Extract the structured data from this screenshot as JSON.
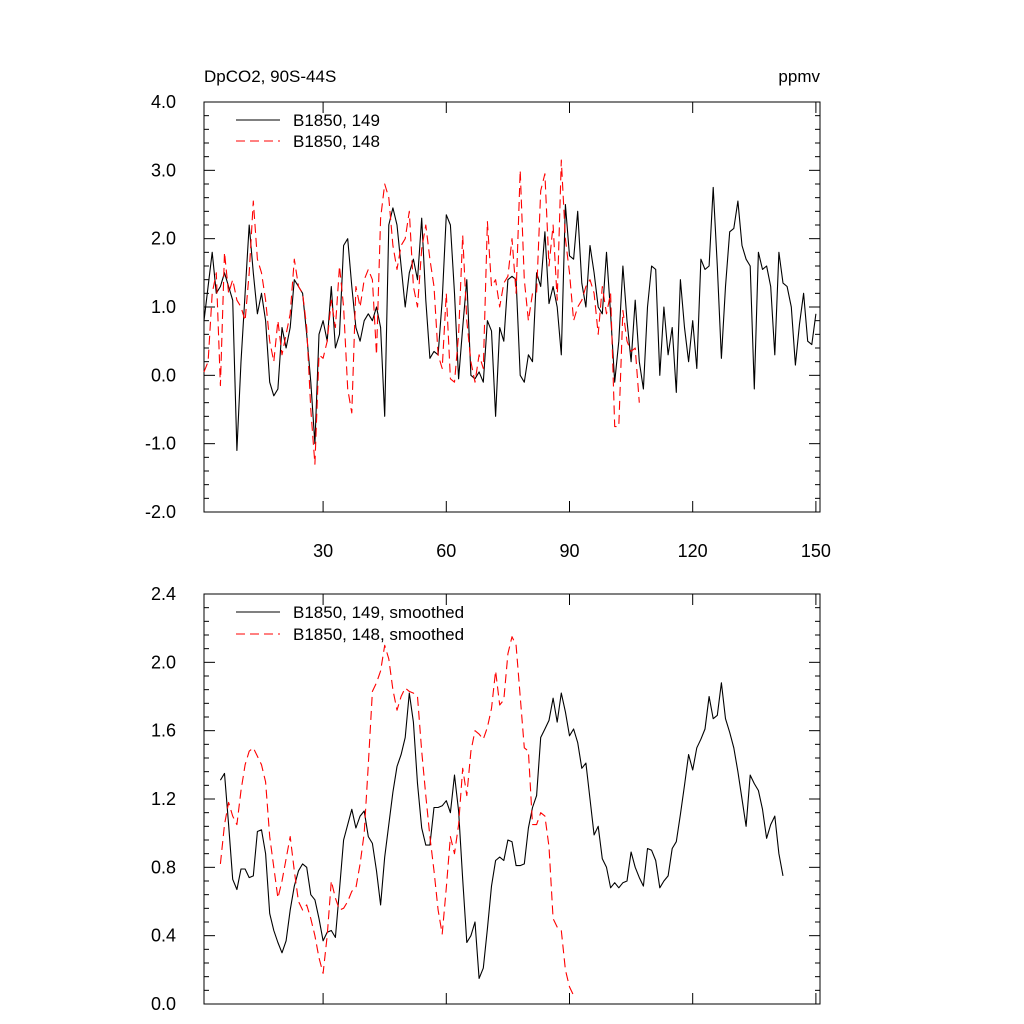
{
  "figure": {
    "left_title": "DpCO2, 90S-44S",
    "right_title": "ppmv"
  },
  "chart_data": [
    {
      "type": "line",
      "title": "DpCO2, 90S-44S",
      "units": "ppmv",
      "xlim": [
        1,
        151
      ],
      "ylim": [
        -2.0,
        4.0
      ],
      "x_ticks": [
        30,
        60,
        90,
        120,
        150
      ],
      "x_tick_labels": [
        "30",
        "60",
        "90",
        "120",
        "150"
      ],
      "y_ticks": [
        -2.0,
        -1.0,
        0.0,
        1.0,
        2.0,
        3.0,
        4.0
      ],
      "y_tick_labels": [
        "-2.0",
        "-1.0",
        "0.0",
        "1.0",
        "2.0",
        "3.0",
        "4.0"
      ],
      "grid": false,
      "legend_position": "top-left",
      "series": [
        {
          "name": "B1850, 149",
          "color": "#000000",
          "dash": "solid",
          "x_start": 1,
          "values": [
            0.8,
            1.3,
            1.8,
            1.2,
            1.3,
            1.5,
            1.3,
            1.1,
            -1.1,
            0.2,
            1.2,
            2.2,
            1.5,
            0.9,
            1.2,
            0.8,
            -0.1,
            -0.3,
            -0.2,
            0.7,
            0.4,
            0.7,
            1.4,
            1.3,
            1.2,
            0.6,
            -0.1,
            -1.0,
            0.6,
            0.8,
            0.5,
            1.3,
            0.4,
            0.6,
            1.9,
            2.0,
            1.3,
            0.7,
            0.5,
            0.8,
            0.9,
            0.8,
            1.0,
            0.7,
            -0.6,
            2.2,
            2.45,
            2.2,
            1.6,
            1.0,
            1.5,
            1.7,
            1.4,
            2.3,
            1.1,
            0.25,
            0.35,
            0.3,
            1.1,
            2.35,
            2.2,
            1.2,
            -0.05,
            0.7,
            1.4,
            0.0,
            -0.05,
            0.05,
            -0.1,
            0.8,
            0.65,
            -0.6,
            0.7,
            0.5,
            1.4,
            1.45,
            1.4,
            0.0,
            -0.1,
            0.3,
            0.2,
            1.5,
            1.3,
            2.1,
            1.05,
            1.3,
            1.0,
            0.3,
            2.5,
            1.75,
            1.7,
            2.4,
            1.35,
            1.0,
            1.9,
            1.5,
            1.0,
            0.9,
            1.8,
            0.9,
            -0.1,
            0.5,
            1.6,
            0.8,
            0.2,
            1.1,
            0.2,
            -0.2,
            1.0,
            1.6,
            1.55,
            0.0,
            1.0,
            0.3,
            0.7,
            -0.25,
            1.4,
            0.7,
            0.2,
            0.8,
            0.1,
            1.7,
            1.55,
            1.6,
            2.75,
            1.6,
            0.25,
            1.3,
            2.1,
            2.15,
            2.55,
            1.9,
            1.7,
            1.6,
            -0.2,
            1.8,
            1.55,
            1.6,
            1.3,
            0.3,
            1.8,
            1.35,
            1.3,
            1.0,
            0.15,
            0.75,
            1.2,
            0.5,
            0.45,
            0.9
          ]
        },
        {
          "name": "B1850, 148",
          "color": "#ff0000",
          "dash": "dashed",
          "x_start": 1,
          "values": [
            0.05,
            0.2,
            1.2,
            1.5,
            -0.15,
            1.8,
            1.2,
            1.4,
            1.1,
            1.0,
            0.8,
            1.5,
            2.55,
            1.7,
            1.5,
            1.1,
            0.5,
            0.2,
            0.8,
            0.3,
            0.6,
            0.9,
            1.7,
            1.3,
            1.2,
            0.7,
            -0.5,
            -1.3,
            0.3,
            0.25,
            0.5,
            1.1,
            0.7,
            1.6,
            1.0,
            -0.2,
            -0.55,
            1.3,
            1.0,
            1.4,
            1.55,
            1.4,
            0.3,
            2.3,
            2.8,
            2.6,
            1.9,
            1.55,
            1.9,
            2.0,
            2.4,
            1.3,
            1.0,
            1.85,
            2.2,
            1.7,
            1.3,
            0.3,
            0.1,
            1.2,
            -0.05,
            -0.1,
            0.6,
            2.05,
            0.8,
            0.2,
            -0.1,
            0.3,
            0.1,
            2.25,
            1.3,
            1.4,
            1.0,
            1.35,
            1.45,
            2.0,
            1.2,
            3.0,
            1.4,
            0.8,
            1.2,
            1.2,
            2.7,
            2.95,
            1.6,
            2.2,
            1.1,
            3.15,
            2.0,
            1.5,
            0.8,
            1.0,
            1.1,
            1.3,
            1.4,
            1.2,
            0.6,
            1.3,
            0.9,
            1.2,
            -0.75,
            -0.75,
            0.95,
            0.5,
            0.35,
            0.4,
            -0.4
          ]
        }
      ]
    },
    {
      "type": "line",
      "xlim": [
        1,
        151
      ],
      "ylim": [
        0.0,
        2.4
      ],
      "y_ticks": [
        0.0,
        0.4,
        0.8,
        1.2,
        1.6,
        2.0,
        2.4
      ],
      "y_tick_labels": [
        "0.0",
        "0.4",
        "0.8",
        "1.2",
        "1.6",
        "2.0",
        "2.4"
      ],
      "grid": false,
      "legend_position": "top-left",
      "series": [
        {
          "name": "B1850, 149, smoothed",
          "color": "#000000",
          "dash": "solid",
          "x_start": 5,
          "values": [
            1.31,
            1.35,
            1.05,
            0.73,
            0.67,
            0.79,
            0.79,
            0.74,
            0.75,
            1.01,
            1.02,
            0.88,
            0.53,
            0.43,
            0.36,
            0.3,
            0.37,
            0.55,
            0.69,
            0.78,
            0.82,
            0.8,
            0.64,
            0.61,
            0.5,
            0.37,
            0.42,
            0.43,
            0.39,
            0.67,
            0.96,
            1.05,
            1.14,
            1.03,
            1.1,
            1.13,
            0.98,
            0.94,
            0.78,
            0.58,
            0.86,
            1.05,
            1.24,
            1.39,
            1.46,
            1.56,
            1.82,
            1.65,
            1.29,
            1.03,
            0.93,
            0.93,
            1.15,
            1.15,
            1.16,
            1.19,
            1.12,
            1.34,
            1.13,
            0.73,
            0.36,
            0.4,
            0.48,
            0.15,
            0.21,
            0.44,
            0.69,
            0.84,
            0.86,
            0.84,
            0.96,
            0.95,
            0.81,
            0.81,
            0.82,
            1.03,
            1.15,
            1.22,
            1.56,
            1.61,
            1.66,
            1.79,
            1.65,
            1.82,
            1.71,
            1.57,
            1.61,
            1.53,
            1.38,
            1.41,
            1.2,
            0.99,
            1.04,
            0.85,
            0.8,
            0.68,
            0.71,
            0.68,
            0.71,
            0.72,
            0.89,
            0.8,
            0.74,
            0.69,
            0.91,
            0.9,
            0.84,
            0.68,
            0.72,
            0.75,
            0.91,
            0.95,
            1.11,
            1.28,
            1.46,
            1.37,
            1.5,
            1.55,
            1.61,
            1.8,
            1.67,
            1.69,
            1.88,
            1.67,
            1.59,
            1.5,
            1.36,
            1.2,
            1.04,
            1.34,
            1.29,
            1.25,
            1.14,
            0.97,
            1.05,
            1.1,
            0.88,
            0.75
          ]
        },
        {
          "name": "B1850, 148, smoothed",
          "color": "#ff0000",
          "dash": "dashed",
          "x_start": 5,
          "values": [
            0.82,
            1.05,
            1.18,
            1.1,
            1.05,
            1.25,
            1.4,
            1.48,
            1.5,
            1.45,
            1.4,
            1.3,
            0.98,
            0.8,
            0.62,
            0.72,
            0.85,
            0.98,
            0.78,
            0.6,
            0.55,
            0.58,
            0.5,
            0.4,
            0.27,
            0.18,
            0.4,
            0.72,
            0.62,
            0.55,
            0.56,
            0.6,
            0.66,
            0.68,
            0.82,
            1.0,
            1.4,
            1.83,
            1.88,
            1.95,
            2.1,
            2.02,
            1.84,
            1.72,
            1.8,
            1.85,
            1.83,
            1.82,
            1.8,
            1.48,
            1.22,
            0.98,
            0.78,
            0.55,
            0.41,
            0.68,
            0.98,
            0.88,
            1.05,
            1.38,
            1.22,
            1.48,
            1.6,
            1.58,
            1.55,
            1.62,
            1.73,
            1.95,
            1.75,
            1.78,
            2.05,
            2.15,
            2.1,
            1.8,
            1.5,
            1.48,
            1.05,
            1.05,
            1.12,
            1.1,
            0.92,
            0.5,
            0.45,
            0.43,
            0.2,
            0.1,
            0.05
          ]
        }
      ]
    }
  ]
}
